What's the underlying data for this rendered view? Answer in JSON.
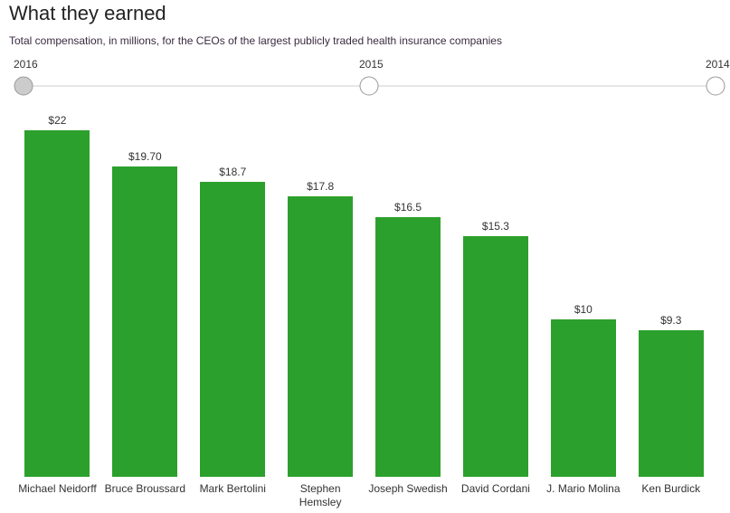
{
  "header": {
    "title": "What they earned",
    "subtitle": "Total compensation, in millions, for the CEOs of the largest publicly traded health insurance companies"
  },
  "timeline": {
    "years": [
      "2016",
      "2015",
      "2014"
    ],
    "selected": 0
  },
  "chart_data": {
    "type": "bar",
    "categories": [
      "Michael Neidorff",
      "Bruce Broussard",
      "Mark Bertolini",
      "Stephen Hemsley",
      "Joseph Swedish",
      "David Cordani",
      "J. Mario Molina",
      "Ken Burdick"
    ],
    "values": [
      22,
      19.7,
      18.7,
      17.8,
      16.5,
      15.3,
      10,
      9.3
    ],
    "value_labels": [
      "$22",
      "$19.70",
      "$18.7",
      "$17.8",
      "$16.5",
      "$15.3",
      "$10",
      "$9.3"
    ],
    "color": "#2ca02c"
  }
}
